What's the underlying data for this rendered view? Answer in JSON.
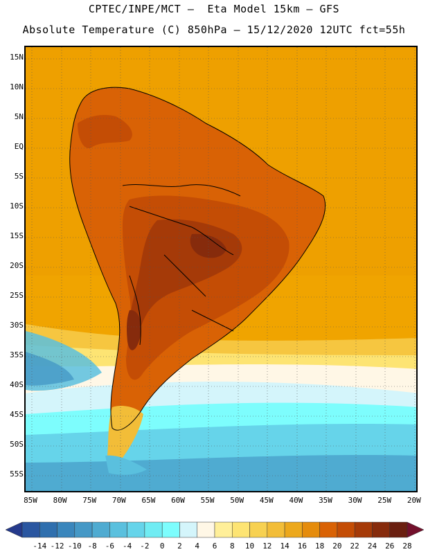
{
  "title_line1": "CPTEC/INPE/MCT –  Eta Model 15km – GFS",
  "title_line2": "Absolute Temperature (C) 850hPa – 15/12/2020 12UTC fct=55h",
  "lat_labels": [
    "15N",
    "10N",
    "5N",
    "EQ",
    "5S",
    "10S",
    "15S",
    "20S",
    "25S",
    "30S",
    "35S",
    "40S",
    "45S",
    "50S",
    "55S"
  ],
  "lon_labels": [
    "85W",
    "80W",
    "75W",
    "70W",
    "65W",
    "60W",
    "55W",
    "50W",
    "45W",
    "40W",
    "35W",
    "30W",
    "25W",
    "20W"
  ],
  "colorbar": {
    "labels": [
      "-14",
      "-12",
      "-10",
      "-8",
      "-6",
      "-4",
      "-2",
      "0",
      "2",
      "4",
      "6",
      "8",
      "10",
      "12",
      "14",
      "16",
      "18",
      "20",
      "22",
      "24",
      "26",
      "28"
    ],
    "colors": [
      "#253a8c",
      "#2a56a0",
      "#2f6fae",
      "#3a86bc",
      "#4598c6",
      "#4fabd1",
      "#5ac0de",
      "#66d4ea",
      "#70ecf3",
      "#7dfdfd",
      "#d4f5fb",
      "#fff7e6",
      "#ffef99",
      "#fde473",
      "#f7d151",
      "#f2bd38",
      "#eca81c",
      "#e58c0c",
      "#d96205",
      "#c44d05",
      "#a53a08",
      "#862b0c",
      "#6a1f10",
      "#73102c"
    ]
  },
  "map": {
    "region": "South America",
    "field": "Absolute Temperature 850hPa",
    "icon": "map-icon"
  }
}
